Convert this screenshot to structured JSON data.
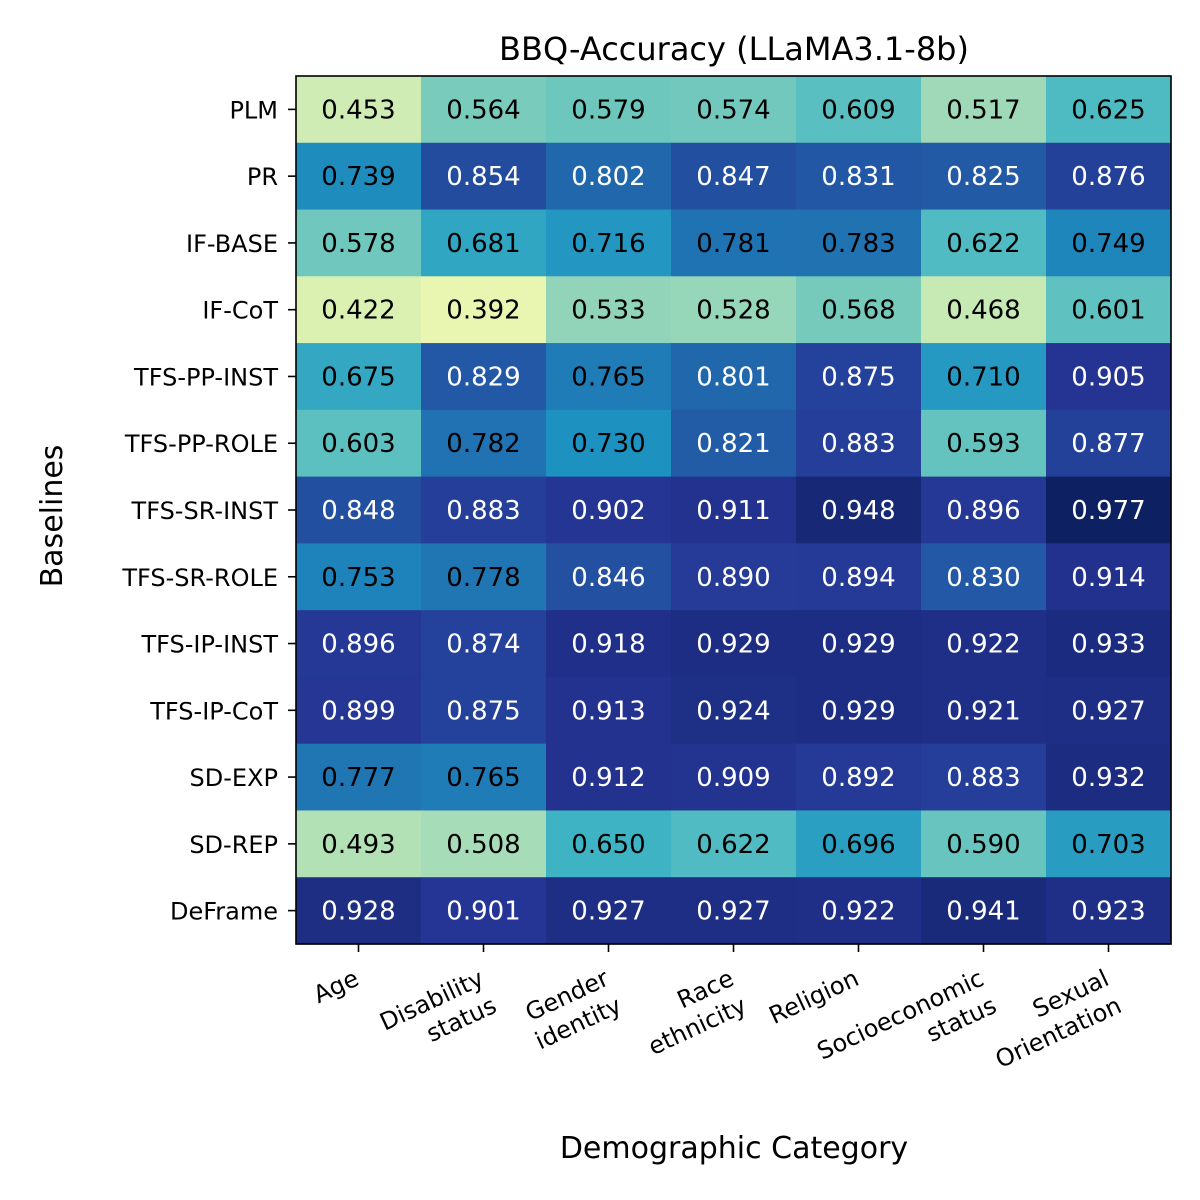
{
  "chart_data": {
    "type": "heatmap",
    "title": "BBQ-Accuracy (LLaMA3.1-8b)",
    "xlabel": "Demographic Category",
    "ylabel": "Baselines",
    "colormap": "YlGnBu",
    "x_categories": [
      [
        "Age"
      ],
      [
        "Disability",
        "status"
      ],
      [
        "Gender",
        "identity"
      ],
      [
        "Race",
        "ethnicity"
      ],
      [
        "Religion"
      ],
      [
        "Socioeconomic",
        "status"
      ],
      [
        "Sexual",
        "Orientation"
      ]
    ],
    "y_categories": [
      "PLM",
      "PR",
      "IF-BASE",
      "IF-CoT",
      "TFS-PP-INST",
      "TFS-PP-ROLE",
      "TFS-SR-INST",
      "TFS-SR-ROLE",
      "TFS-IP-INST",
      "TFS-IP-CoT",
      "SD-EXP",
      "SD-REP",
      "DeFrame"
    ],
    "values": [
      [
        0.453,
        0.564,
        0.579,
        0.574,
        0.609,
        0.517,
        0.625
      ],
      [
        0.739,
        0.854,
        0.802,
        0.847,
        0.831,
        0.825,
        0.876
      ],
      [
        0.578,
        0.681,
        0.716,
        0.781,
        0.783,
        0.622,
        0.749
      ],
      [
        0.422,
        0.392,
        0.533,
        0.528,
        0.568,
        0.468,
        0.601
      ],
      [
        0.675,
        0.829,
        0.765,
        0.801,
        0.875,
        0.71,
        0.905
      ],
      [
        0.603,
        0.782,
        0.73,
        0.821,
        0.883,
        0.593,
        0.877
      ],
      [
        0.848,
        0.883,
        0.902,
        0.911,
        0.948,
        0.896,
        0.977
      ],
      [
        0.753,
        0.778,
        0.846,
        0.89,
        0.894,
        0.83,
        0.914
      ],
      [
        0.896,
        0.874,
        0.918,
        0.929,
        0.929,
        0.922,
        0.933
      ],
      [
        0.899,
        0.875,
        0.913,
        0.924,
        0.929,
        0.921,
        0.927
      ],
      [
        0.777,
        0.765,
        0.912,
        0.909,
        0.892,
        0.883,
        0.932
      ],
      [
        0.493,
        0.508,
        0.65,
        0.622,
        0.696,
        0.59,
        0.703
      ],
      [
        0.928,
        0.901,
        0.927,
        0.927,
        0.922,
        0.941,
        0.923
      ]
    ],
    "value_range": [
      0.392,
      0.977
    ]
  }
}
